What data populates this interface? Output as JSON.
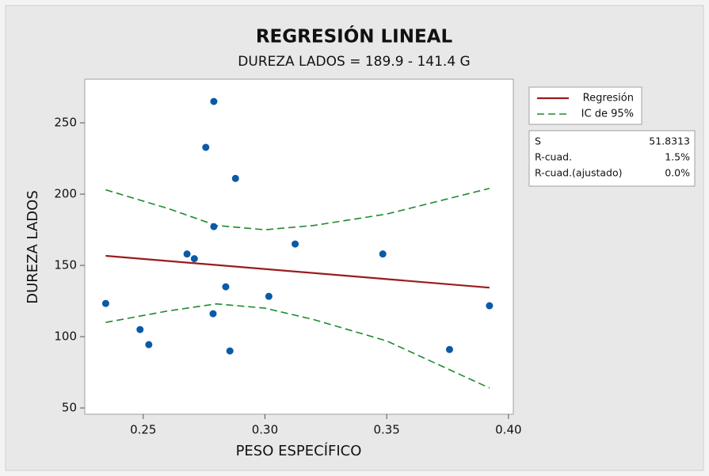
{
  "chart_data": {
    "type": "scatter",
    "title": "REGRESIÓN LINEAL",
    "subtitle": "DUREZA LADOS = 189.9 - 141.4 G",
    "xlabel": "PESO ESPECÍFICO",
    "ylabel": "DUREZA LADOS",
    "x": [
      0.2346,
      0.2487,
      0.2523,
      0.268,
      0.271,
      0.2757,
      0.279,
      0.279,
      0.2787,
      0.2839,
      0.2856,
      0.2879,
      0.3016,
      0.3124,
      0.3484,
      0.3758,
      0.3922
    ],
    "y": [
      123.3,
      105,
      94.4,
      158,
      154.7,
      232.8,
      265,
      177.2,
      116.1,
      135,
      90,
      211,
      128.3,
      165,
      158,
      91,
      121.7
    ],
    "color": "#0b5aa8",
    "fit": {
      "name": "Regresión",
      "color": "#9b1b1b",
      "x": [
        0.2346,
        0.3922
      ],
      "values": [
        156.7,
        134.4
      ]
    },
    "ci": {
      "name": "IC de 95%",
      "color": "#1e8a2e",
      "x": [
        0.2346,
        0.26,
        0.28,
        0.3,
        0.32,
        0.35,
        0.3922
      ],
      "upper": [
        203,
        190,
        178,
        175,
        178,
        186,
        204
      ],
      "lower": [
        110,
        118,
        123,
        120,
        112,
        97,
        64
      ]
    },
    "xlim": [
      0.226,
      0.402
    ],
    "ylim": [
      45.6,
      280.6
    ],
    "xticks": [
      0.25,
      {
        "value": 0.3,
        "label": "0.30"
      },
      0.35,
      {
        "value": 0.4,
        "label": "0.40"
      }
    ],
    "yticks": [
      50,
      100,
      150,
      200,
      250
    ],
    "stats": [
      [
        "S",
        "51.8313"
      ],
      [
        "R-cuad.",
        "1.5%"
      ],
      [
        "R-cuad.(ajustado)",
        "0.0%"
      ]
    ]
  }
}
